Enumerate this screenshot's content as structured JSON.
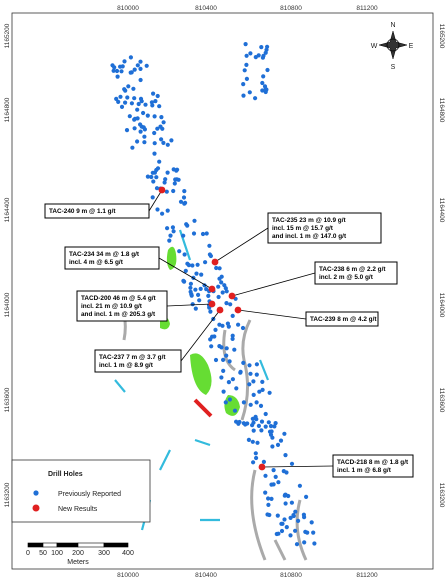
{
  "map": {
    "x_labels": [
      "810000",
      "810400",
      "810800",
      "811200"
    ],
    "y_labels": [
      "1165200",
      "1164800",
      "1164400",
      "1164000",
      "1163600",
      "1163200"
    ],
    "compass": {
      "north": "N",
      "east": "E",
      "south": "S",
      "west": "W"
    },
    "callouts": [
      {
        "lines": [
          "TAC-240  9 m @ 1.1 g/t"
        ]
      },
      {
        "lines": [
          "TAC-235  23 m @ 10.9 g/t",
          "incl.  15 m @ 15.7 g/t",
          "and incl. 1 m @ 147.0 g/t"
        ]
      },
      {
        "lines": [
          "TAC-234  34 m @ 1.8 g/t",
          "incl. 4 m @ 6.5 g/t"
        ]
      },
      {
        "lines": [
          "TAC-238  6 m @ 2.2 g/t",
          "incl. 2 m @ 5.0 g/t"
        ]
      },
      {
        "lines": [
          "TACD-200  46 m @ 5.4 g/t",
          "incl. 21 m @ 10.9 g/t",
          "and incl. 1 m @ 205.3 g/t"
        ]
      },
      {
        "lines": [
          "TAC-239  8 m @ 4.2 g/t"
        ]
      },
      {
        "lines": [
          "TAC-237  7 m @ 3.7 g/t",
          "incl. 1 m @ 8.9 g/t"
        ]
      },
      {
        "lines": [
          "TACD-218  8 m @ 1.8 g/t",
          "incl. 1 m @ 6.8 g/t"
        ]
      }
    ],
    "legend": {
      "title": "Drill Holes",
      "items": [
        "Previously Reported",
        "New Results"
      ]
    },
    "scale_bar": {
      "ticks": [
        "0",
        "50",
        "100",
        "200",
        "300",
        "400"
      ],
      "unit": "Meters"
    }
  }
}
